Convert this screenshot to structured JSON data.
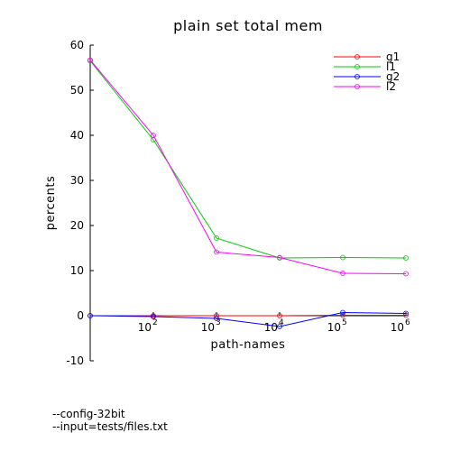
{
  "chart_data": {
    "type": "line",
    "title": "plain set total mem",
    "xlabel": "path-names",
    "ylabel": "percents",
    "x_scale": "log",
    "x": [
      10,
      100,
      1000,
      10000,
      100000,
      1000000
    ],
    "x_tick_values": [
      100,
      1000,
      10000,
      100000,
      1000000
    ],
    "x_ticks": [
      {
        "base": "10",
        "exp": "2"
      },
      {
        "base": "10",
        "exp": "3"
      },
      {
        "base": "10",
        "exp": "4"
      },
      {
        "base": "10",
        "exp": "5"
      },
      {
        "base": "10",
        "exp": "6"
      }
    ],
    "ylim": [
      -10,
      60
    ],
    "y_ticks": [
      -10,
      0,
      10,
      20,
      30,
      40,
      50,
      60
    ],
    "grid": false,
    "legend_position": "top-right",
    "series": [
      {
        "name": "g1",
        "color": "#ff0000",
        "values": [
          0.0,
          0.0,
          0.0,
          0.0,
          0.1,
          0.1
        ]
      },
      {
        "name": "l1",
        "color": "#00cc00",
        "values": [
          56.5,
          39.0,
          17.2,
          12.8,
          12.9,
          12.8
        ]
      },
      {
        "name": "g2",
        "color": "#0000ff",
        "values": [
          0.0,
          -0.2,
          -0.6,
          -2.4,
          0.7,
          0.5
        ]
      },
      {
        "name": "l2",
        "color": "#ff00ff",
        "values": [
          56.7,
          40.0,
          14.1,
          12.9,
          9.4,
          9.3
        ]
      }
    ]
  },
  "notes": [
    "--config-32bit",
    "--input=tests/files.txt"
  ]
}
